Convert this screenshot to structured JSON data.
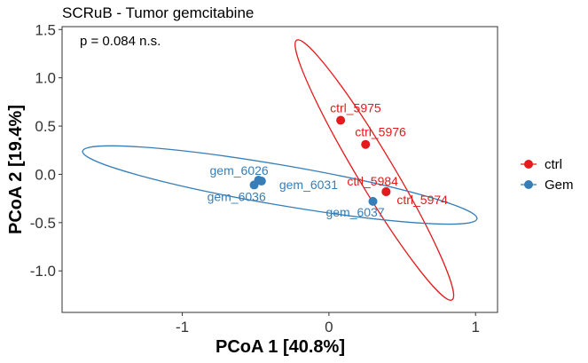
{
  "chart_data": {
    "type": "scatter",
    "title": "SCRuB - Tumor gemcitabine",
    "annotation": "p = 0.084 n.s.",
    "xlabel": "PCoA 1 [40.8%]",
    "ylabel": "PCoA 2 [19.4%]",
    "xlim": [
      -1.82,
      1.15
    ],
    "ylim": [
      -1.43,
      1.53
    ],
    "xticks": [
      -1,
      0,
      1
    ],
    "xtick_labels": [
      "-1",
      "0",
      "1"
    ],
    "yticks": [
      -1.0,
      -0.5,
      0.0,
      0.5,
      1.0,
      1.5
    ],
    "ytick_labels": [
      "-1.0",
      "-0.5",
      "0.0",
      "0.5",
      "1.0",
      "1.5"
    ],
    "grid": false,
    "legend_position": "right",
    "series": [
      {
        "name": "ctrl",
        "color": "#E41A1C",
        "points": [
          {
            "label": "ctrl_5975",
            "x": 0.08,
            "y": 0.56
          },
          {
            "label": "ctrl_5976",
            "x": 0.25,
            "y": 0.31
          },
          {
            "label": "ctrl_5984",
            "x": 0.39,
            "y": -0.18
          },
          {
            "label": "ctrl_5974",
            "x": 0.39,
            "y": -0.18
          }
        ],
        "ellipse": {
          "cx": 0.31,
          "cy": 0.03,
          "points": [
            [
              -0.22,
              1.39
            ],
            [
              0.84,
              -1.3
            ]
          ],
          "minor": 0.12
        }
      },
      {
        "name": "Gem",
        "color": "#377EB8",
        "points": [
          {
            "label": "gem_6026",
            "x": -0.48,
            "y": -0.06
          },
          {
            "label": "gem_6036",
            "x": -0.51,
            "y": -0.11
          },
          {
            "label": "gem_6031",
            "x": -0.46,
            "y": -0.07
          },
          {
            "label": "gem_6037",
            "x": 0.3,
            "y": -0.28
          }
        ],
        "ellipse": {
          "cx": -0.32,
          "cy": -0.11,
          "points": [
            [
              -1.68,
              0.24
            ],
            [
              1.01,
              -0.46
            ]
          ],
          "minor": 0.1
        }
      }
    ]
  }
}
